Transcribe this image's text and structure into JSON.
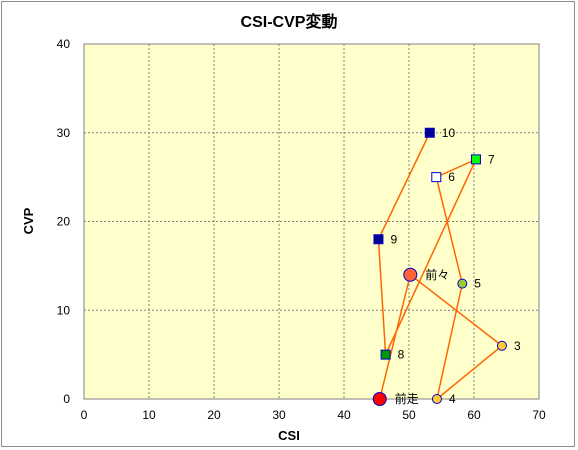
{
  "chart_data": {
    "type": "scatter",
    "title": "CSI-CVP変動",
    "xlabel": "CSI",
    "ylabel": "CVP",
    "xlim": [
      0,
      70
    ],
    "ylim": [
      0,
      40
    ],
    "xticks": [
      "0",
      "10",
      "20",
      "30",
      "40",
      "50",
      "60",
      "70"
    ],
    "yticks": [
      "0",
      "10",
      "20",
      "30",
      "40"
    ],
    "grid": true,
    "legend": "none",
    "colors": {
      "plot_background": "#ffffcc",
      "grid": "#808080",
      "line": "#ff6600",
      "red": "#ff0000",
      "orange": "#ff6633",
      "yellow": "#ffcc33",
      "yellow_green": "#99cc33",
      "navy": "#000099",
      "green_dark": "#009900",
      "green_bright": "#00ff00",
      "blue": "#0000cc",
      "white": "#ffffff"
    },
    "points": [
      {
        "label": "前走",
        "x": 45.5,
        "y": 0,
        "marker": "circle-large",
        "fill": "#ff0000",
        "stroke": "#0000cc"
      },
      {
        "label": "前々",
        "x": 50.2,
        "y": 14,
        "marker": "circle-large",
        "fill": "#ff6633",
        "stroke": "#0000cc"
      },
      {
        "label": "3",
        "x": 64.3,
        "y": 6,
        "marker": "circle",
        "fill": "#ffcc33",
        "stroke": "#0000cc"
      },
      {
        "label": "4",
        "x": 54.3,
        "y": 0,
        "marker": "circle",
        "fill": "#ffcc33",
        "stroke": "#0000cc"
      },
      {
        "label": "5",
        "x": 58.2,
        "y": 13,
        "marker": "circle",
        "fill": "#99cc33",
        "stroke": "#0000cc"
      },
      {
        "label": "6",
        "x": 54.2,
        "y": 25,
        "marker": "square",
        "fill": "#ffffff",
        "stroke": "#0000cc"
      },
      {
        "label": "7",
        "x": 60.3,
        "y": 27,
        "marker": "square",
        "fill": "#00ff00",
        "stroke": "#0000cc"
      },
      {
        "label": "8",
        "x": 46.4,
        "y": 5,
        "marker": "square",
        "fill": "#009900",
        "stroke": "#0000cc"
      },
      {
        "label": "9",
        "x": 45.3,
        "y": 18,
        "marker": "square",
        "fill": "#000099",
        "stroke": "#0000cc"
      },
      {
        "label": "10",
        "x": 53.2,
        "y": 30,
        "marker": "square",
        "fill": "#000099",
        "stroke": "#0000cc"
      }
    ]
  }
}
